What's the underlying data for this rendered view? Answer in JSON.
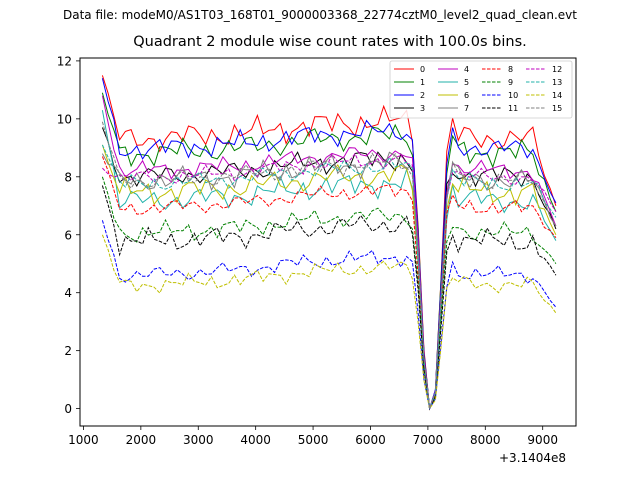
{
  "chart_data": {
    "type": "line",
    "suptitle": "Data file: modeM0/AS1T03_168T01_9000003368_22774cztM0_level2_quad_clean.evt",
    "title": "Quadrant 2 module wise count rates with 100.0s bins.",
    "x_offset_label": "+3.1404e8",
    "xlim": [
      940,
      9580
    ],
    "ylim": [
      -0.6,
      12.1
    ],
    "xticks": [
      1000,
      2000,
      3000,
      4000,
      5000,
      6000,
      7000,
      8000,
      9000
    ],
    "xtick_labels": [
      "1000",
      "2000",
      "3000",
      "4000",
      "5000",
      "6000",
      "7000",
      "8000",
      "9000"
    ],
    "yticks": [
      0,
      2,
      4,
      6,
      8,
      10,
      12
    ],
    "ytick_labels": [
      "0",
      "2",
      "4",
      "6",
      "8",
      "10",
      "12"
    ],
    "x_start": 1330,
    "x_step": 100,
    "gap_index": 55,
    "legend_position": "top-right",
    "series": [
      {
        "name": "0",
        "color": "#ff0000",
        "dash": "solid",
        "base": 9.45,
        "amp": 0.42,
        "first": 11.5,
        "last": 7.0
      },
      {
        "name": "1",
        "color": "#008000",
        "dash": "solid",
        "base": 8.95,
        "amp": 0.4,
        "first": 10.9,
        "last": 6.8
      },
      {
        "name": "2",
        "color": "#0000ff",
        "dash": "solid",
        "base": 9.1,
        "amp": 0.35,
        "first": 11.4,
        "last": 7.1
      },
      {
        "name": "3",
        "color": "#000000",
        "dash": "solid",
        "base": 8.15,
        "amp": 0.35,
        "first": 9.7,
        "last": 6.2
      },
      {
        "name": "4",
        "color": "#bf00bf",
        "dash": "solid",
        "base": 8.35,
        "amp": 0.28,
        "first": 10.8,
        "last": 6.3
      },
      {
        "name": "5",
        "color": "#20b2aa",
        "dash": "solid",
        "base": 7.3,
        "amp": 0.38,
        "first": 10.3,
        "last": 5.8
      },
      {
        "name": "6",
        "color": "#bfbf00",
        "dash": "solid",
        "base": 7.6,
        "amp": 0.4,
        "first": 9.1,
        "last": 6.0
      },
      {
        "name": "7",
        "color": "#808080",
        "dash": "solid",
        "base": 8.0,
        "amp": 0.38,
        "first": 8.8,
        "last": 6.3
      },
      {
        "name": "8",
        "color": "#ff0000",
        "dash": "dashed",
        "base": 7.05,
        "amp": 0.25,
        "first": 8.7,
        "last": 5.9
      },
      {
        "name": "9",
        "color": "#008000",
        "dash": "dashed",
        "base": 6.2,
        "amp": 0.3,
        "first": 8.0,
        "last": 5.0
      },
      {
        "name": "10",
        "color": "#0000ff",
        "dash": "dashed",
        "base": 4.75,
        "amp": 0.25,
        "first": 6.5,
        "last": 3.5
      },
      {
        "name": "11",
        "color": "#000000",
        "dash": "dashed",
        "base": 5.9,
        "amp": 0.35,
        "first": 7.7,
        "last": 4.6
      },
      {
        "name": "12",
        "color": "#bf00bf",
        "dash": "dashed",
        "base": 8.1,
        "amp": 0.25,
        "first": 8.3,
        "last": 6.8
      },
      {
        "name": "13",
        "color": "#20b2aa",
        "dash": "dashed",
        "base": 7.9,
        "amp": 0.28,
        "first": 9.1,
        "last": 6.6
      },
      {
        "name": "14",
        "color": "#bfbf00",
        "dash": "dashed",
        "base": 4.4,
        "amp": 0.25,
        "first": 6.0,
        "last": 3.3
      },
      {
        "name": "15",
        "color": "#808080",
        "dash": "dashed",
        "base": 8.0,
        "amp": 0.3,
        "first": 9.9,
        "last": 6.3
      }
    ]
  }
}
